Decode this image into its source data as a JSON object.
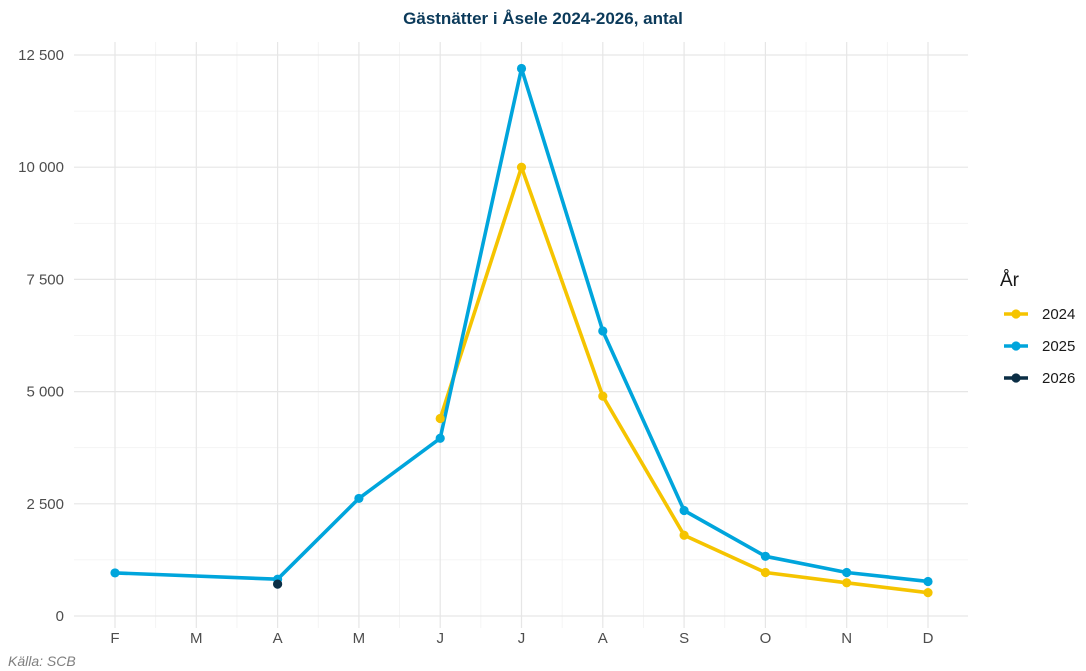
{
  "chart_data": {
    "type": "line",
    "title": "Gästnätter i Åsele 2024-2026, antal",
    "xlabel": "",
    "ylabel": "",
    "categories": [
      "F",
      "M",
      "A",
      "M",
      "J",
      "J",
      "A",
      "S",
      "O",
      "N",
      "D"
    ],
    "ylim": [
      0,
      12500
    ],
    "yticks": [
      0,
      2500,
      5000,
      7500,
      10000,
      12500
    ],
    "ytick_labels": [
      "0",
      "2 500",
      "5 000",
      "7 500",
      "10 000",
      "12 500"
    ],
    "grid": true,
    "legend": {
      "title": "År",
      "position": "right"
    },
    "series": [
      {
        "name": "2024",
        "color": "#F5C400",
        "values": [
          null,
          null,
          null,
          null,
          4400,
          10000,
          4900,
          1800,
          970,
          740,
          520
        ]
      },
      {
        "name": "2025",
        "color": "#00A5DC",
        "values": [
          960,
          null,
          820,
          2620,
          3960,
          12200,
          6350,
          2350,
          1330,
          970,
          770
        ]
      },
      {
        "name": "2026",
        "color": "#0B2E45",
        "values": [
          null,
          null,
          710,
          null,
          null,
          null,
          null,
          null,
          null,
          null,
          null
        ]
      }
    ],
    "caption": "Källa: SCB"
  }
}
